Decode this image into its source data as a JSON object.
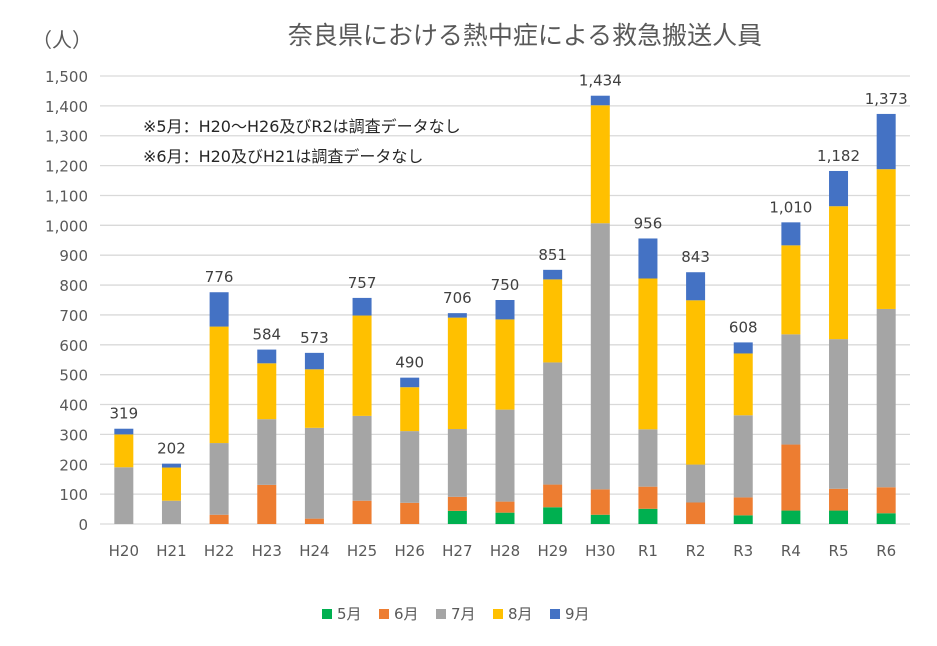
{
  "chart_data": {
    "type": "bar",
    "stacked": true,
    "title": "奈良県における熱中症による救急搬送人員",
    "ylabel": "（人）",
    "ylim": [
      0,
      1500
    ],
    "yticks": [
      "0",
      "100",
      "200",
      "300",
      "400",
      "500",
      "600",
      "700",
      "800",
      "900",
      "1,000",
      "1,100",
      "1,200",
      "1,300",
      "1,400",
      "1,500"
    ],
    "grid": true,
    "legend_position": "bottom",
    "annotations": [
      "※5月：H20～H26及びR2は調査データなし",
      "※6月：H20及びH21は調査データなし"
    ],
    "categories": [
      "H20",
      "H21",
      "H22",
      "H23",
      "H24",
      "H25",
      "H26",
      "H27",
      "H28",
      "H29",
      "H30",
      "R1",
      "R2",
      "R3",
      "R4",
      "R5",
      "R6"
    ],
    "totals": [
      "319",
      "202",
      "776",
      "584",
      "573",
      "757",
      "490",
      "706",
      "750",
      "851",
      "1,434",
      "956",
      "843",
      "608",
      "1,010",
      "1,182",
      "1,373"
    ],
    "series": [
      {
        "name": "5月",
        "color": "#00b050",
        "values": [
          0,
          0,
          0,
          0,
          0,
          0,
          0,
          44,
          38,
          56,
          31,
          51,
          0,
          29,
          45,
          45,
          36
        ]
      },
      {
        "name": "6月",
        "color": "#ed7d31",
        "values": [
          0,
          0,
          31,
          131,
          18,
          78,
          71,
          47,
          37,
          76,
          85,
          74,
          72,
          60,
          221,
          73,
          87
        ]
      },
      {
        "name": "7月",
        "color": "#a5a5a5",
        "values": [
          190,
          78,
          240,
          220,
          304,
          284,
          240,
          227,
          308,
          409,
          891,
          192,
          127,
          275,
          369,
          501,
          597
        ]
      },
      {
        "name": "8月",
        "color": "#ffc000",
        "values": [
          110,
          111,
          390,
          187,
          196,
          336,
          147,
          373,
          302,
          278,
          395,
          505,
          550,
          207,
          298,
          445,
          468
        ]
      },
      {
        "name": "9月",
        "color": "#4472c4",
        "values": [
          19,
          13,
          115,
          46,
          55,
          59,
          32,
          15,
          65,
          32,
          32,
          134,
          94,
          37,
          77,
          118,
          185
        ]
      }
    ]
  }
}
